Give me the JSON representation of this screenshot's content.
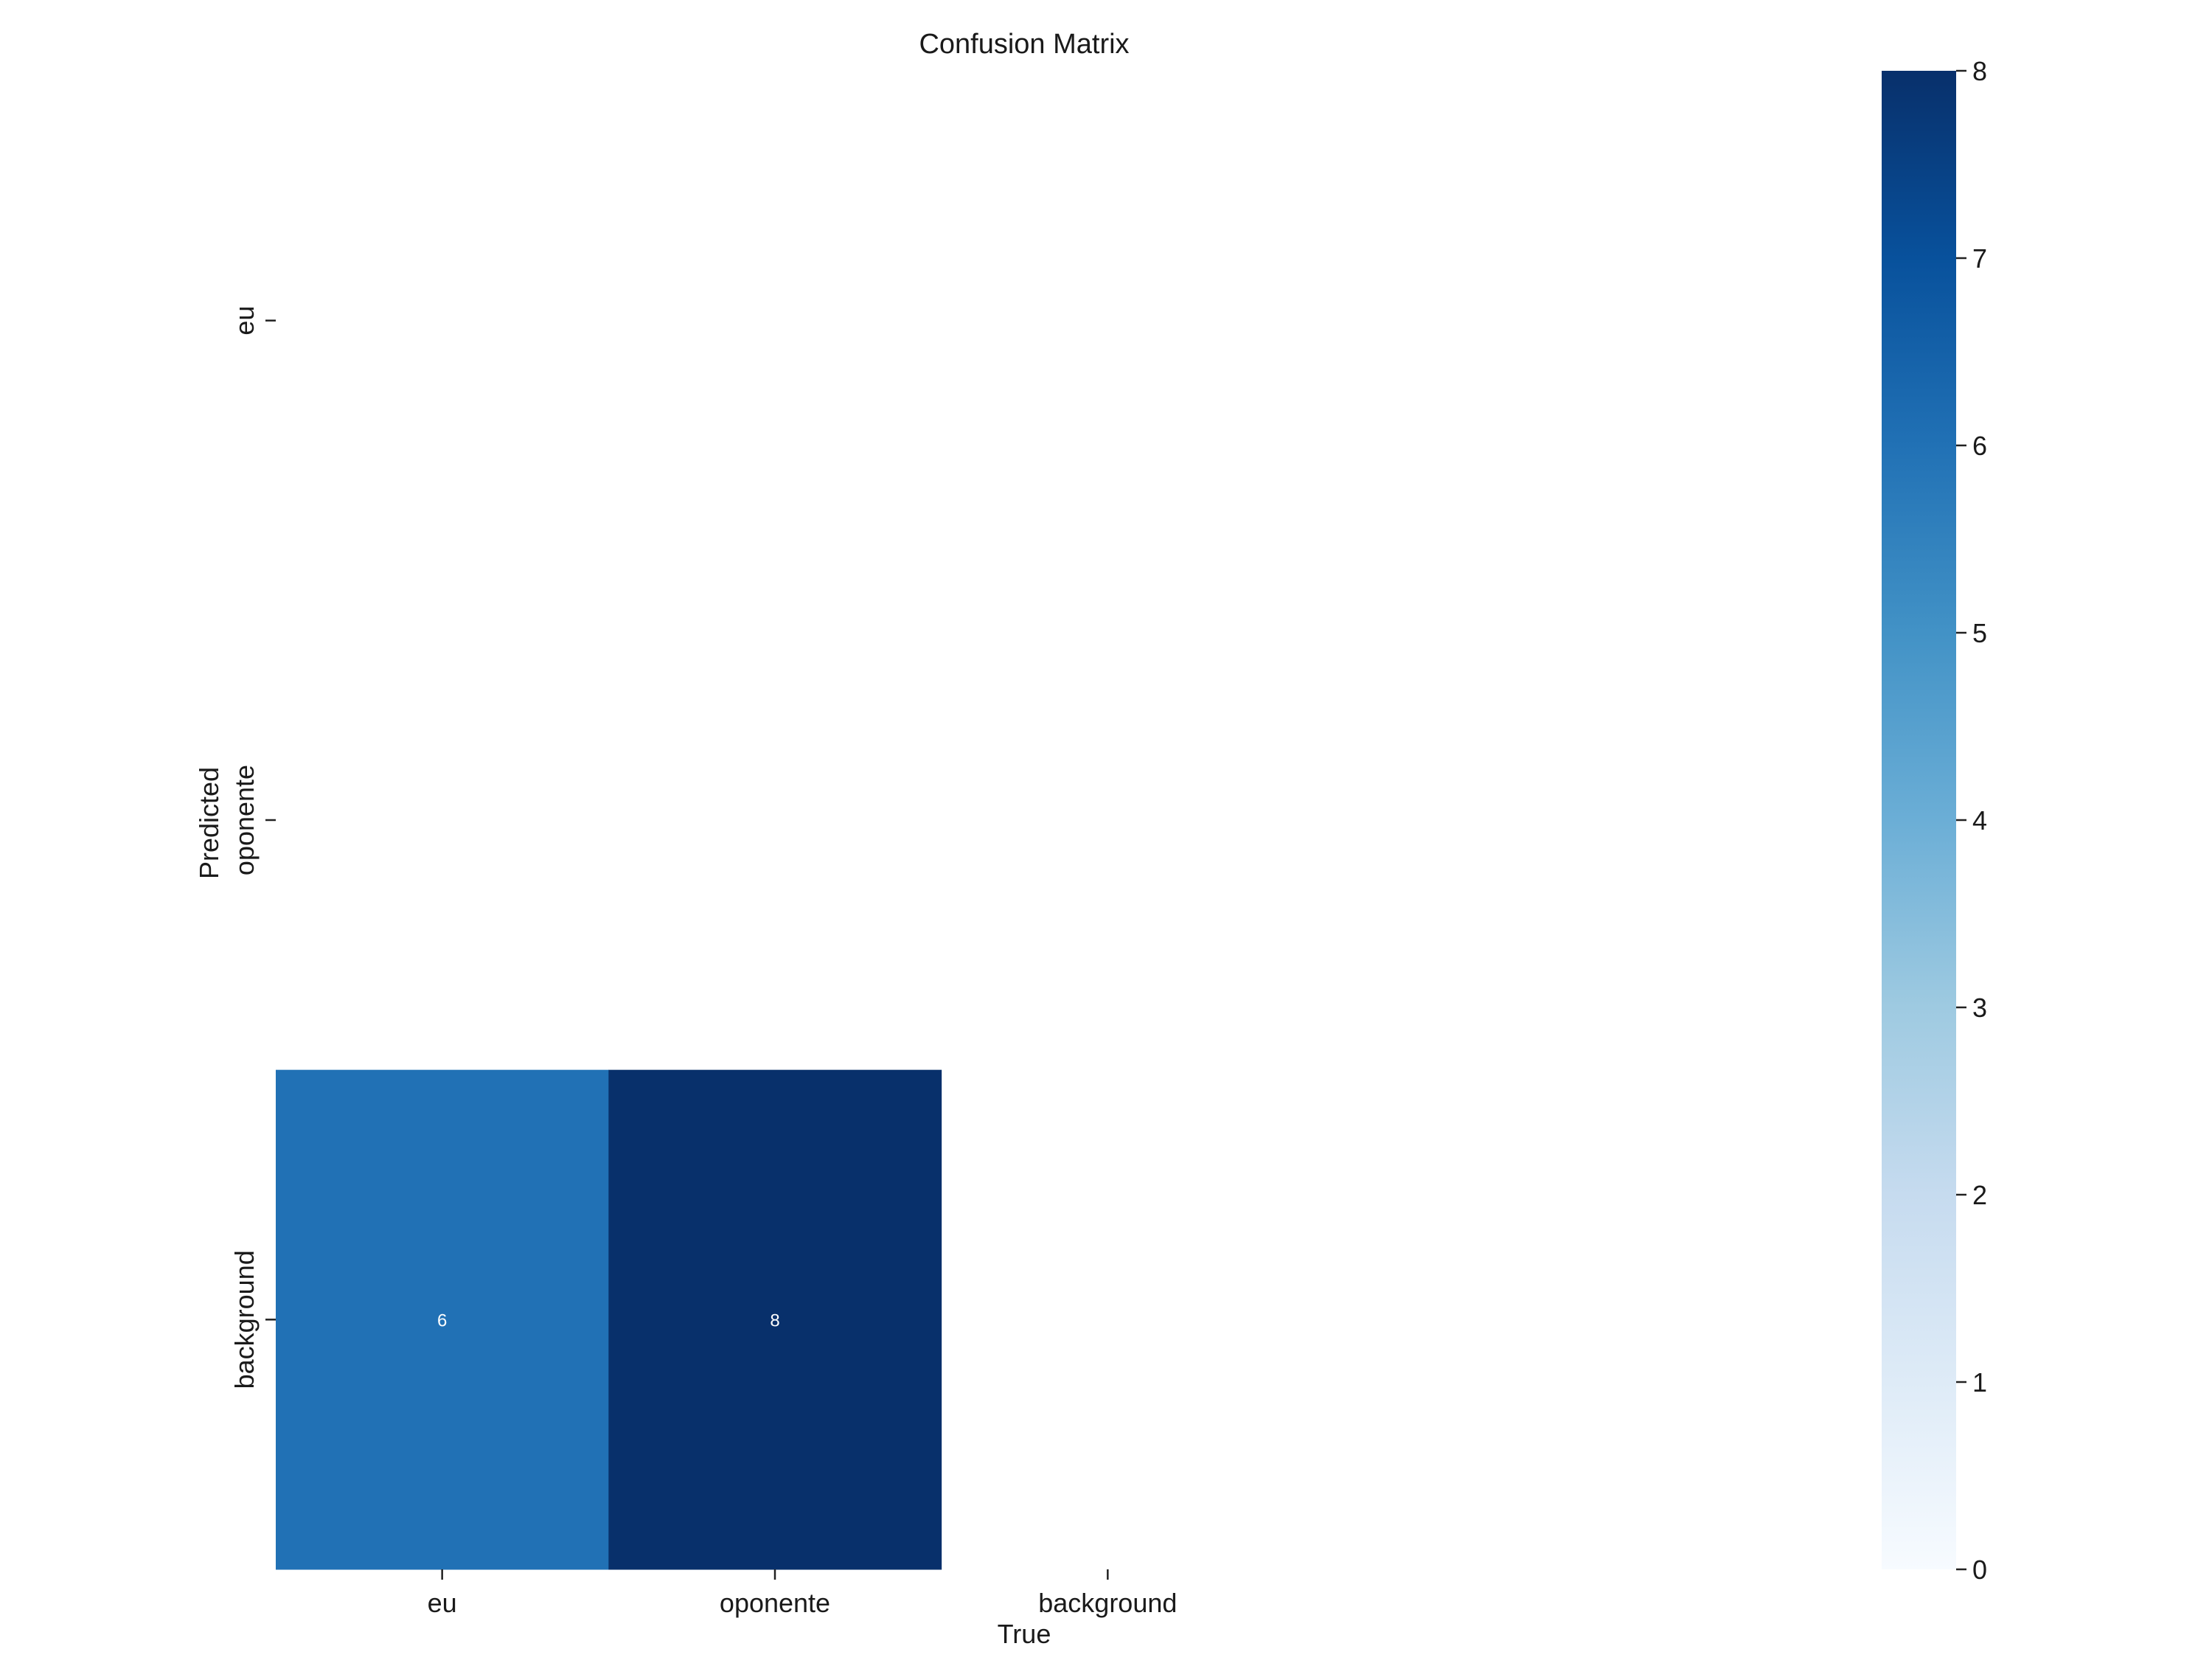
{
  "chart_data": {
    "type": "heatmap",
    "title": "Confusion Matrix",
    "xlabel": "True",
    "ylabel": "Predicted",
    "x_categories": [
      "eu",
      "oponente",
      "background"
    ],
    "y_categories": [
      "eu",
      "oponente",
      "background"
    ],
    "matrix": [
      [
        null,
        null,
        null
      ],
      [
        null,
        null,
        null
      ],
      [
        6,
        8,
        null
      ]
    ],
    "colorbar": {
      "min": 0,
      "max": 8,
      "ticks": [
        "0",
        "1",
        "2",
        "3",
        "4",
        "5",
        "6",
        "7",
        "8"
      ],
      "colormap": "Blues"
    },
    "grid": false,
    "empty_cell_color": "#ffffff",
    "annotation_color": "#ffffff"
  }
}
